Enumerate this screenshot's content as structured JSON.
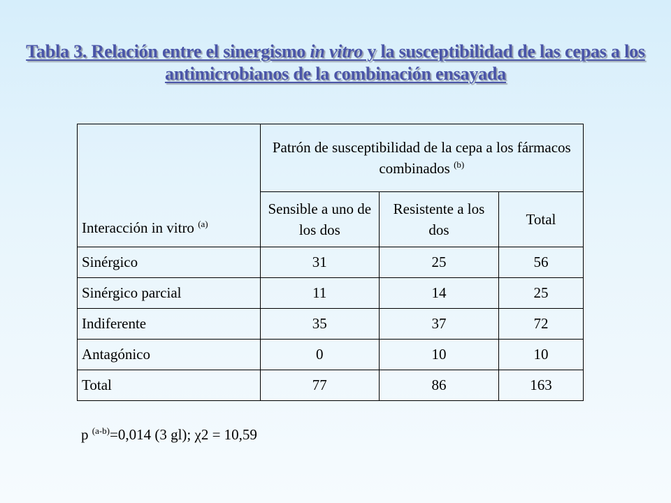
{
  "title": {
    "part1": "Tabla 3. Relación entre el sinergismo ",
    "italic": "in vitro",
    "part2": " y la susceptibilidad de las cepas a los antimicrobianos de la combinación ensayada"
  },
  "table": {
    "row_header": {
      "label": "Interacción in vitro",
      "sup": "(a)"
    },
    "group_header": {
      "label": "Patrón de susceptibilidad de la cepa a los fármacos combinados",
      "sup": "(b)"
    },
    "columns": [
      "Sensible a uno de los dos",
      "Resistente a los dos",
      "Total"
    ],
    "rows": [
      {
        "label": "Sinérgico",
        "values": [
          "31",
          "25",
          "56"
        ]
      },
      {
        "label": "Sinérgico parcial",
        "values": [
          "11",
          "14",
          "25"
        ]
      },
      {
        "label": "Indiferente",
        "values": [
          "35",
          "37",
          "72"
        ]
      },
      {
        "label": "Antagónico",
        "values": [
          "0",
          "10",
          "10"
        ]
      },
      {
        "label": "Total",
        "values": [
          "77",
          "86",
          "163"
        ]
      }
    ]
  },
  "footnote": {
    "p": "p",
    "sup": "(a-b)",
    "rest": "=0,014 (3 gl); ",
    "chi": "χ",
    "chi_rest": "2 = 10,59"
  }
}
